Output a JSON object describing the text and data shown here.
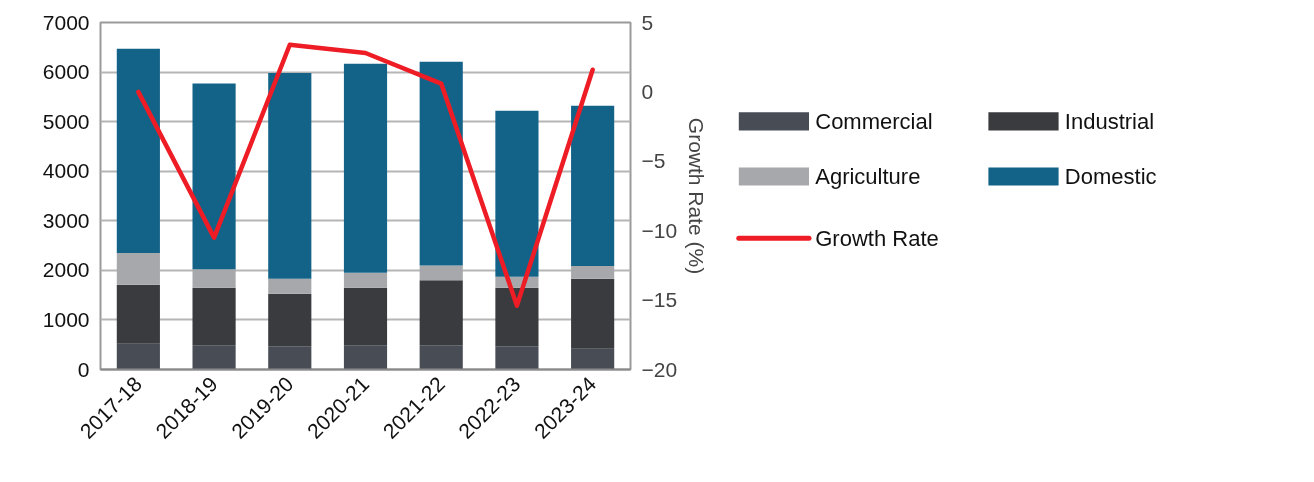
{
  "chart_data": {
    "type": "bar",
    "stacked": true,
    "categories": [
      "2017-18",
      "2018-19",
      "2019-20",
      "2020-21",
      "2021-22",
      "2022-23",
      "2023-24"
    ],
    "series": [
      {
        "name": "Commercial",
        "color": "#474c55",
        "values": [
          520,
          490,
          470,
          490,
          490,
          470,
          420
        ]
      },
      {
        "name": "Industrial",
        "color": "#3a3b3f",
        "values": [
          1190,
          1160,
          1060,
          1160,
          1310,
          1180,
          1410
        ]
      },
      {
        "name": "Agriculture",
        "color": "#a7a8ab",
        "values": [
          640,
          370,
          300,
          300,
          300,
          220,
          260
        ]
      },
      {
        "name": "Domestic",
        "color": "#136389",
        "values": [
          4120,
          3750,
          4150,
          4220,
          4110,
          3350,
          3230
        ]
      },
      {
        "name": "Growth Rate",
        "type": "line",
        "axis": "y2",
        "color": "#ee1c25",
        "values": [
          0,
          -10.5,
          3.4,
          2.8,
          0.6,
          -15.4,
          1.6
        ]
      }
    ],
    "ylim": [
      0,
      7000
    ],
    "yticks": [
      0,
      1000,
      2000,
      3000,
      4000,
      5000,
      6000,
      7000
    ],
    "y2lim": [
      -20,
      5
    ],
    "y2ticks": [
      -20,
      -15,
      -10,
      -5,
      0,
      5
    ],
    "y2label": "Growth Rate (%)",
    "grid": "y",
    "legend": "right"
  }
}
